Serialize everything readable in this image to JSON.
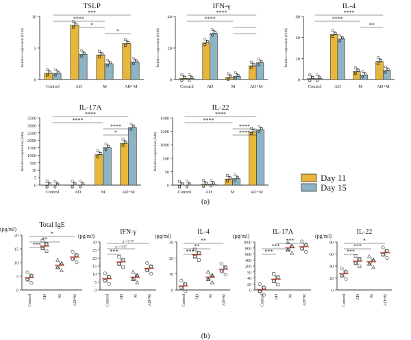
{
  "figure": {
    "panel_a": "(a)",
    "panel_b": "(b)"
  },
  "legend": {
    "day11": "Day 11",
    "day15": "Day 15",
    "day11_color": "#E8B73A",
    "day15_color": "#8DB4C4"
  },
  "ylabel_rel": "Relative expression (fold)",
  "ylabel_pg": "(pg/ml)",
  "chart_data": [
    {
      "type": "bar",
      "panel": "a",
      "title": "TSLP",
      "categories": [
        "Control",
        "AD",
        "M",
        "AD+M"
      ],
      "series": [
        {
          "name": "Day 11",
          "values": [
            1.0,
            8.6,
            3.9,
            5.7
          ]
        },
        {
          "name": "Day 15",
          "values": [
            1.0,
            4.0,
            2.5,
            2.8
          ]
        }
      ],
      "ylim": [
        0,
        10
      ],
      "yticks": [
        "0",
        "5",
        "10"
      ],
      "brackets": [
        {
          "label": "***",
          "from": 0,
          "to": 3
        },
        {
          "label": "****",
          "from": 0,
          "to": 2
        },
        {
          "label": "*",
          "from": 1,
          "to": 2
        },
        {
          "label": "*",
          "from": 2,
          "to": 3
        }
      ]
    },
    {
      "type": "bar",
      "panel": "a",
      "title": "IFN-γ",
      "categories": [
        "Control",
        "AD",
        "M",
        "AD+M"
      ],
      "series": [
        {
          "name": "Day 11",
          "values": [
            1.0,
            35,
            2.0,
            13
          ]
        },
        {
          "name": "Day 15",
          "values": [
            1.0,
            44,
            3.0,
            16
          ]
        }
      ],
      "ylim": [
        0,
        60
      ],
      "yticks": [
        "0",
        "20",
        "40"
      ],
      "brackets": [
        {
          "label": "****",
          "from": 0,
          "to": 3
        },
        {
          "label": "****",
          "from": 0,
          "to": 2
        },
        {
          "label": "",
          "from": 2,
          "to": 3
        },
        {
          "label": "",
          "from": 2,
          "to": 3
        }
      ]
    },
    {
      "type": "bar",
      "panel": "a",
      "title": "IL-4",
      "categories": [
        "Control",
        "AD",
        "M",
        "AD+M"
      ],
      "series": [
        {
          "name": "Day 11",
          "values": [
            1.0,
            50,
            9,
            20
          ]
        },
        {
          "name": "Day 15",
          "values": [
            1.0,
            45,
            5,
            10
          ]
        }
      ],
      "ylim": [
        0,
        70
      ],
      "yticks": [
        "0",
        "20",
        "40",
        "60"
      ],
      "brackets": [
        {
          "label": "****",
          "from": 0,
          "to": 3
        },
        {
          "label": "****",
          "from": 0,
          "to": 2
        },
        {
          "label": "**",
          "from": 2,
          "to": 3
        }
      ]
    },
    {
      "type": "bar",
      "panel": "a",
      "title": "IL-17A",
      "categories": [
        "Control",
        "AD",
        "M",
        "AD+M"
      ],
      "broken_axis": true,
      "series": [
        {
          "name": "Day 11",
          "values": [
            1.0,
            4,
            1400,
            2050
          ]
        },
        {
          "name": "Day 15",
          "values": [
            1.0,
            5,
            1800,
            2950
          ]
        }
      ],
      "ylim": [
        0,
        3500
      ],
      "yticks": [
        "0",
        "5",
        "10",
        "500",
        "1000",
        "1500",
        "2000",
        "2500",
        "3000",
        "3500"
      ],
      "brackets": [
        {
          "label": "****",
          "from": 0,
          "to": 3
        },
        {
          "label": "****",
          "from": 0,
          "to": 2
        },
        {
          "label": "****",
          "from": 2,
          "to": 3
        },
        {
          "label": "*",
          "from": 2,
          "to": 3
        }
      ]
    },
    {
      "type": "bar",
      "panel": "a",
      "title": "IL-22",
      "categories": [
        "Control",
        "AD",
        "M",
        "AD+M"
      ],
      "broken_axis": true,
      "series": [
        {
          "name": "Day 11",
          "values": [
            1.0,
            10,
            70,
            1080
          ]
        },
        {
          "name": "Day 15",
          "values": [
            1.0,
            12,
            75,
            1130
          ]
        }
      ],
      "ylim": [
        0,
        1400
      ],
      "yticks": [
        "0",
        "50",
        "100",
        "1000",
        "1200",
        "1400"
      ],
      "brackets": [
        {
          "label": "****",
          "from": 0,
          "to": 3
        },
        {
          "label": "****",
          "from": 0,
          "to": 2
        },
        {
          "label": "****",
          "from": 2,
          "to": 3
        },
        {
          "label": "****",
          "from": 2,
          "to": 3
        }
      ]
    },
    {
      "type": "scatter",
      "panel": "b",
      "title": "Total IgE",
      "categories": [
        "Control",
        "AD",
        "M",
        "AD+M"
      ],
      "means": [
        4.5,
        16,
        9,
        12
      ],
      "ylim": [
        0,
        20
      ],
      "yticks": [
        "0",
        "5",
        "10",
        "15",
        "20"
      ],
      "brackets": [
        {
          "label": "***",
          "from": 0,
          "to": 1
        },
        {
          "label": "**",
          "from": 0,
          "to": 2
        },
        {
          "label": "*",
          "from": 0,
          "to": 3
        }
      ]
    },
    {
      "type": "scatter",
      "panel": "b",
      "title": "IFN-γ",
      "categories": [
        "Control",
        "AD",
        "M",
        "AD+M"
      ],
      "means": [
        7,
        17.5,
        8,
        13.5
      ],
      "ylim": [
        0,
        30
      ],
      "yticks": [
        "0",
        "5",
        "10",
        "15",
        "20",
        "25",
        "30"
      ],
      "brackets": [
        {
          "label": "***",
          "from": 0,
          "to": 1
        },
        {
          "label": "p = 0.57",
          "from": 0,
          "to": 2
        },
        {
          "label": "p = 0.77",
          "from": 0,
          "to": 3
        }
      ]
    },
    {
      "type": "scatter",
      "panel": "b",
      "title": "IL-4",
      "categories": [
        "Control",
        "AD",
        "M",
        "AD+M"
      ],
      "means": [
        2.5,
        22,
        8,
        13
      ],
      "ylim": [
        0,
        30
      ],
      "yticks": [
        "0",
        "10",
        "20",
        "30"
      ],
      "brackets": [
        {
          "label": "***",
          "from": 0,
          "to": 1
        },
        {
          "label": "**",
          "from": 0,
          "to": 2
        },
        {
          "label": "**",
          "from": 0,
          "to": 3
        }
      ]
    },
    {
      "type": "scatter",
      "panel": "b",
      "title": "IL-17A",
      "categories": [
        "Control",
        "AD",
        "M",
        "AD+M"
      ],
      "broken_axis": true,
      "means": [
        1,
        25,
        790,
        830
      ],
      "ylim": [
        0,
        1000
      ],
      "yticks": [
        "0",
        "20",
        "40",
        "50",
        "200",
        "400",
        "600",
        "800",
        "1000"
      ],
      "brackets": [
        {
          "label": "***",
          "from": 0,
          "to": 1
        },
        {
          "label": "***",
          "from": 0,
          "to": 2
        },
        {
          "label": "***",
          "from": 1,
          "to": 3
        }
      ]
    },
    {
      "type": "scatter",
      "panel": "b",
      "title": "IL-22",
      "categories": [
        "Control",
        "AD",
        "M",
        "AD+M"
      ],
      "means": [
        27,
        48,
        47,
        62
      ],
      "ylim": [
        0,
        80
      ],
      "yticks": [
        "0",
        "20",
        "40",
        "60",
        "80"
      ],
      "brackets": [
        {
          "label": "***",
          "from": 0,
          "to": 1
        },
        {
          "label": "***",
          "from": 0,
          "to": 2
        },
        {
          "label": "*",
          "from": 0,
          "to": 3
        }
      ]
    }
  ]
}
